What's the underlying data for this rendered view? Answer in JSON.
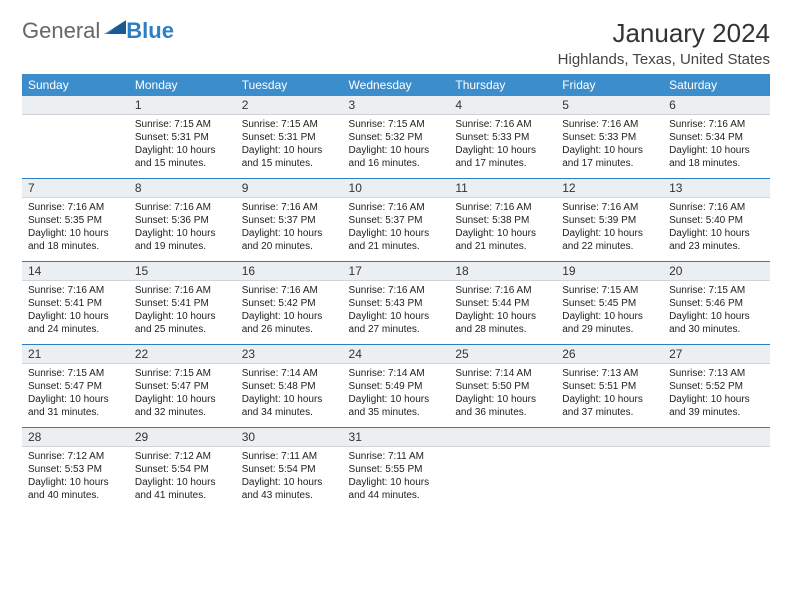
{
  "logo": {
    "text1": "General",
    "text2": "Blue"
  },
  "header": {
    "month": "January 2024",
    "location": "Highlands, Texas, United States"
  },
  "colors": {
    "header_bg": "#3c8dcc",
    "header_fg": "#ffffff",
    "daynum_bg": "#eceff1",
    "row_divider": "#2f7ec2",
    "logo_blue": "#2f7ec2"
  },
  "weekdays": [
    "Sunday",
    "Monday",
    "Tuesday",
    "Wednesday",
    "Thursday",
    "Friday",
    "Saturday"
  ],
  "days": [
    {
      "n": "",
      "sunrise": "",
      "sunset": "",
      "daylight": ""
    },
    {
      "n": "1",
      "sunrise": "7:15 AM",
      "sunset": "5:31 PM",
      "daylight": "10 hours and 15 minutes."
    },
    {
      "n": "2",
      "sunrise": "7:15 AM",
      "sunset": "5:31 PM",
      "daylight": "10 hours and 15 minutes."
    },
    {
      "n": "3",
      "sunrise": "7:15 AM",
      "sunset": "5:32 PM",
      "daylight": "10 hours and 16 minutes."
    },
    {
      "n": "4",
      "sunrise": "7:16 AM",
      "sunset": "5:33 PM",
      "daylight": "10 hours and 17 minutes."
    },
    {
      "n": "5",
      "sunrise": "7:16 AM",
      "sunset": "5:33 PM",
      "daylight": "10 hours and 17 minutes."
    },
    {
      "n": "6",
      "sunrise": "7:16 AM",
      "sunset": "5:34 PM",
      "daylight": "10 hours and 18 minutes."
    },
    {
      "n": "7",
      "sunrise": "7:16 AM",
      "sunset": "5:35 PM",
      "daylight": "10 hours and 18 minutes."
    },
    {
      "n": "8",
      "sunrise": "7:16 AM",
      "sunset": "5:36 PM",
      "daylight": "10 hours and 19 minutes."
    },
    {
      "n": "9",
      "sunrise": "7:16 AM",
      "sunset": "5:37 PM",
      "daylight": "10 hours and 20 minutes."
    },
    {
      "n": "10",
      "sunrise": "7:16 AM",
      "sunset": "5:37 PM",
      "daylight": "10 hours and 21 minutes."
    },
    {
      "n": "11",
      "sunrise": "7:16 AM",
      "sunset": "5:38 PM",
      "daylight": "10 hours and 21 minutes."
    },
    {
      "n": "12",
      "sunrise": "7:16 AM",
      "sunset": "5:39 PM",
      "daylight": "10 hours and 22 minutes."
    },
    {
      "n": "13",
      "sunrise": "7:16 AM",
      "sunset": "5:40 PM",
      "daylight": "10 hours and 23 minutes."
    },
    {
      "n": "14",
      "sunrise": "7:16 AM",
      "sunset": "5:41 PM",
      "daylight": "10 hours and 24 minutes."
    },
    {
      "n": "15",
      "sunrise": "7:16 AM",
      "sunset": "5:41 PM",
      "daylight": "10 hours and 25 minutes."
    },
    {
      "n": "16",
      "sunrise": "7:16 AM",
      "sunset": "5:42 PM",
      "daylight": "10 hours and 26 minutes."
    },
    {
      "n": "17",
      "sunrise": "7:16 AM",
      "sunset": "5:43 PM",
      "daylight": "10 hours and 27 minutes."
    },
    {
      "n": "18",
      "sunrise": "7:16 AM",
      "sunset": "5:44 PM",
      "daylight": "10 hours and 28 minutes."
    },
    {
      "n": "19",
      "sunrise": "7:15 AM",
      "sunset": "5:45 PM",
      "daylight": "10 hours and 29 minutes."
    },
    {
      "n": "20",
      "sunrise": "7:15 AM",
      "sunset": "5:46 PM",
      "daylight": "10 hours and 30 minutes."
    },
    {
      "n": "21",
      "sunrise": "7:15 AM",
      "sunset": "5:47 PM",
      "daylight": "10 hours and 31 minutes."
    },
    {
      "n": "22",
      "sunrise": "7:15 AM",
      "sunset": "5:47 PM",
      "daylight": "10 hours and 32 minutes."
    },
    {
      "n": "23",
      "sunrise": "7:14 AM",
      "sunset": "5:48 PM",
      "daylight": "10 hours and 34 minutes."
    },
    {
      "n": "24",
      "sunrise": "7:14 AM",
      "sunset": "5:49 PM",
      "daylight": "10 hours and 35 minutes."
    },
    {
      "n": "25",
      "sunrise": "7:14 AM",
      "sunset": "5:50 PM",
      "daylight": "10 hours and 36 minutes."
    },
    {
      "n": "26",
      "sunrise": "7:13 AM",
      "sunset": "5:51 PM",
      "daylight": "10 hours and 37 minutes."
    },
    {
      "n": "27",
      "sunrise": "7:13 AM",
      "sunset": "5:52 PM",
      "daylight": "10 hours and 39 minutes."
    },
    {
      "n": "28",
      "sunrise": "7:12 AM",
      "sunset": "5:53 PM",
      "daylight": "10 hours and 40 minutes."
    },
    {
      "n": "29",
      "sunrise": "7:12 AM",
      "sunset": "5:54 PM",
      "daylight": "10 hours and 41 minutes."
    },
    {
      "n": "30",
      "sunrise": "7:11 AM",
      "sunset": "5:54 PM",
      "daylight": "10 hours and 43 minutes."
    },
    {
      "n": "31",
      "sunrise": "7:11 AM",
      "sunset": "5:55 PM",
      "daylight": "10 hours and 44 minutes."
    },
    {
      "n": "",
      "sunrise": "",
      "sunset": "",
      "daylight": ""
    },
    {
      "n": "",
      "sunrise": "",
      "sunset": "",
      "daylight": ""
    },
    {
      "n": "",
      "sunrise": "",
      "sunset": "",
      "daylight": ""
    }
  ],
  "labels": {
    "sunrise_prefix": "Sunrise: ",
    "sunset_prefix": "Sunset: ",
    "daylight_prefix": "Daylight: "
  }
}
